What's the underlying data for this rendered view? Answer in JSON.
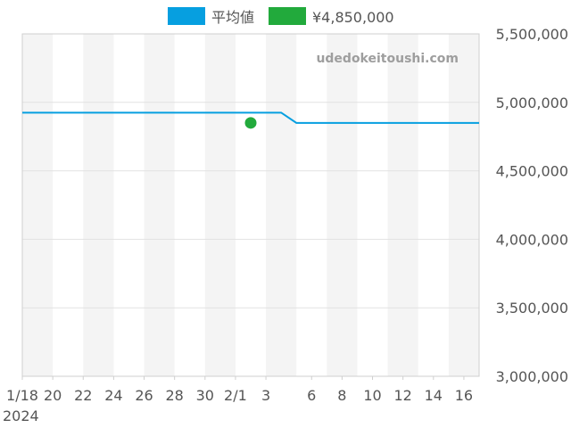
{
  "chart_data": {
    "type": "line",
    "watermark": "udedokeitoushi.com",
    "legend": {
      "placement": "top-center",
      "items": [
        {
          "label": "平均値",
          "color": "#069fe0"
        },
        {
          "label": "¥4,850,000",
          "color": "#22aa3c"
        }
      ]
    },
    "x_axis": {
      "start": "2024-01-18",
      "end": "2024-02-17",
      "tick_labels": [
        "1/18",
        "20",
        "22",
        "24",
        "26",
        "28",
        "30",
        "2/1",
        "3",
        "6",
        "8",
        "10",
        "12",
        "14",
        "16"
      ],
      "year_label": "2024"
    },
    "y_axis": {
      "ylim": [
        3000000,
        5500000
      ],
      "tick_labels": [
        "5,500,000",
        "5,000,000",
        "4,500,000",
        "4,000,000",
        "3,500,000",
        "3,000,000"
      ],
      "grid": true
    },
    "series": [
      {
        "name": "平均値",
        "type": "line",
        "color": "#069fe0",
        "points": [
          {
            "x": "2024-01-18",
            "y": 4925000
          },
          {
            "x": "2024-02-04",
            "y": 4925000
          },
          {
            "x": "2024-02-05",
            "y": 4850000
          },
          {
            "x": "2024-02-17",
            "y": 4850000
          }
        ]
      },
      {
        "name": "¥4,850,000",
        "type": "scatter",
        "color": "#22aa3c",
        "points": [
          {
            "x": "2024-02-02",
            "y": 4850000
          }
        ]
      }
    ]
  }
}
